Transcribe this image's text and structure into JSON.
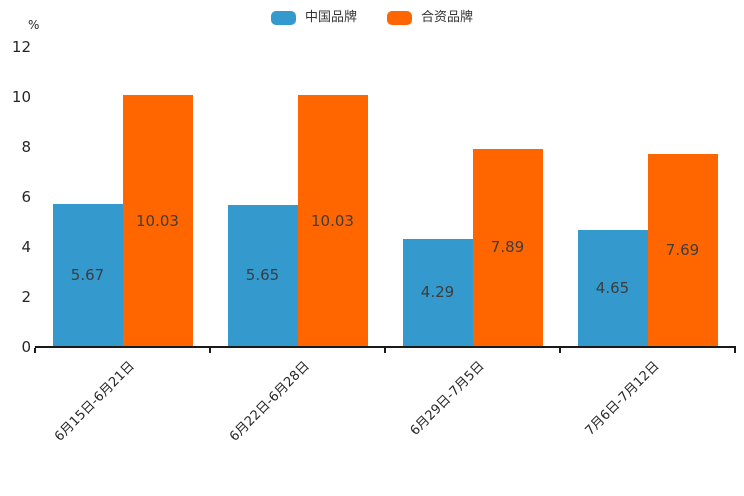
{
  "chart_data": {
    "type": "bar",
    "categories": [
      "6月15日-6月21日",
      "6月22日-6月28日",
      "6月29日-7月5日",
      "7月6日-7月12日"
    ],
    "series": [
      {
        "name": "中国品牌",
        "color": "#3499cc",
        "values": [
          5.67,
          5.65,
          4.29,
          4.65
        ]
      },
      {
        "name": "合资品牌",
        "color": "#ff6600",
        "values": [
          10.03,
          10.03,
          7.89,
          7.69
        ]
      }
    ],
    "xlabel": "",
    "ylabel": "%",
    "ylim": [
      0,
      12
    ],
    "yticks": [
      0,
      2,
      4,
      6,
      8,
      10,
      12
    ],
    "legend_position": "top-center",
    "grid": false,
    "bar_labels_visible": true,
    "colors": {
      "axis": "#1a1a1a",
      "tick_text": "#262626",
      "bar_label_text": "#3d3d3d",
      "background": "#ffffff"
    }
  }
}
